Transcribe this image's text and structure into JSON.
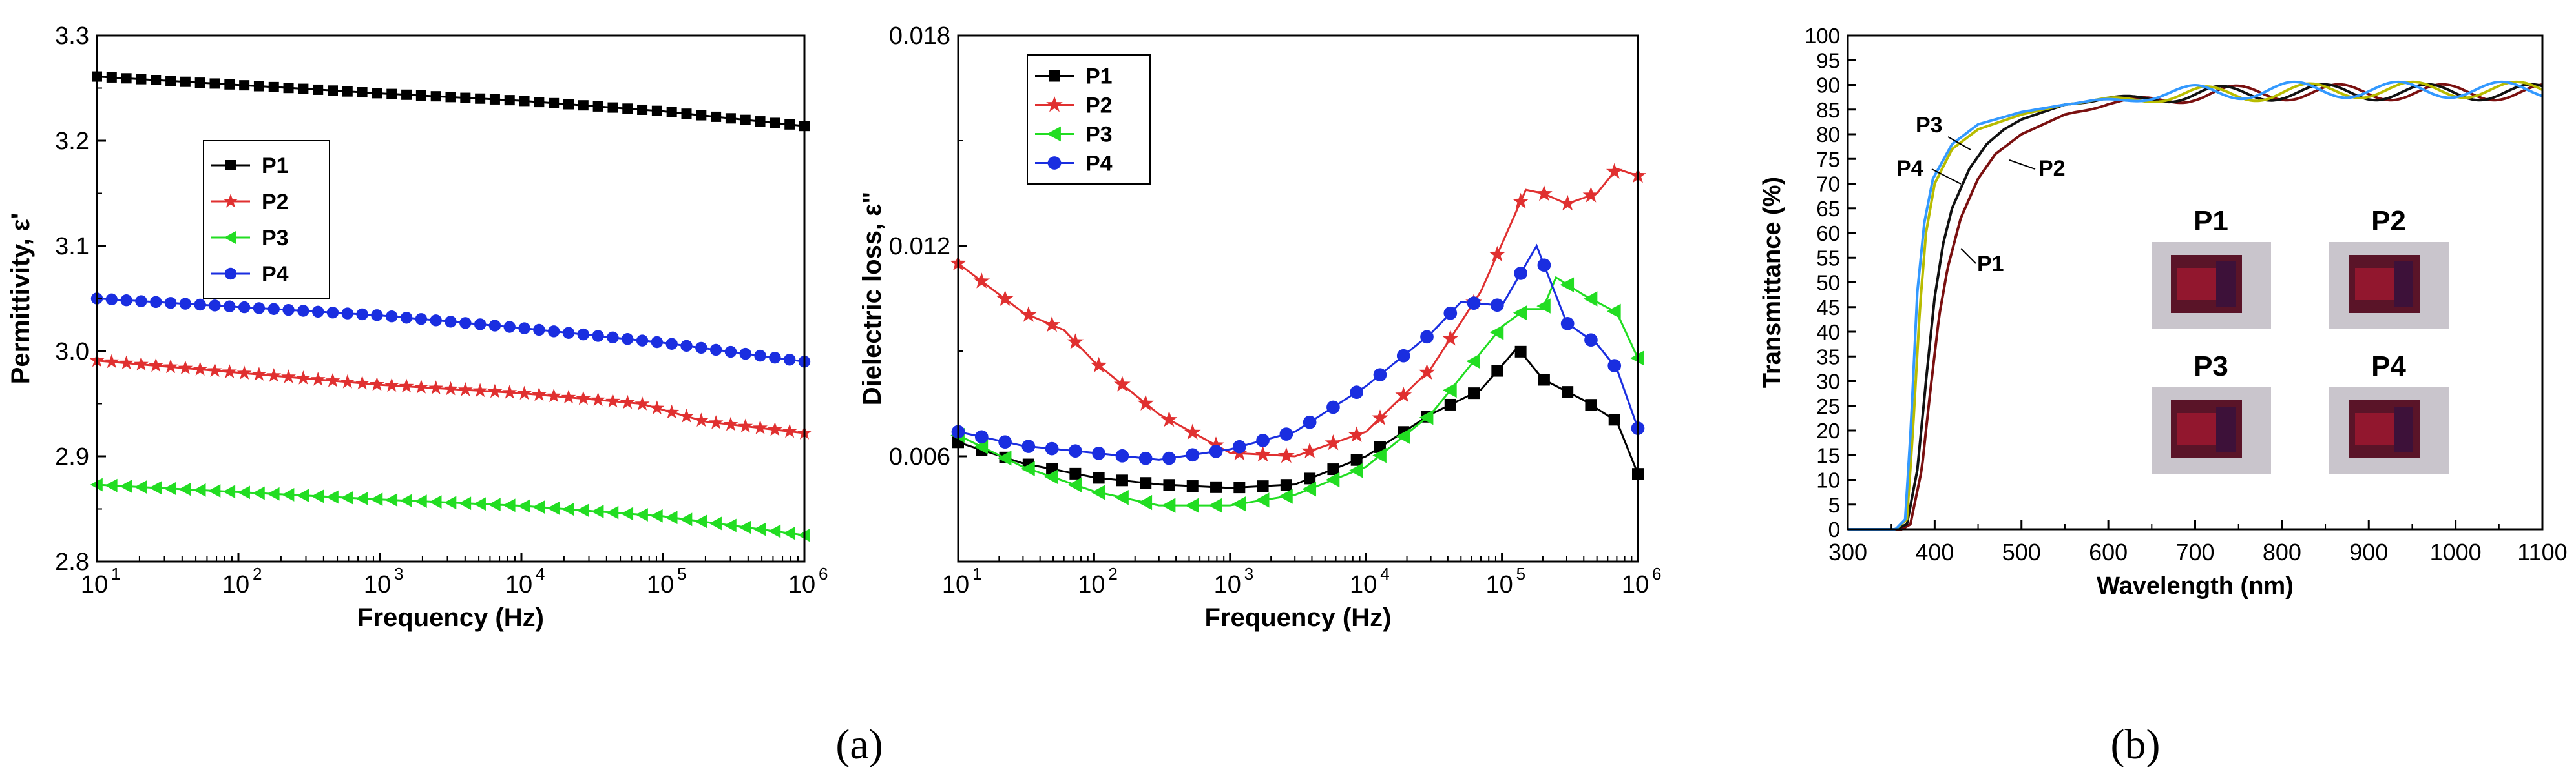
{
  "captions": {
    "a": "(a)",
    "b": "(b)"
  },
  "colors": {
    "P1": "#000000",
    "P2": "#e03030",
    "P3": "#22dd22",
    "P4": "#1a2ee0",
    "T_P1": "#111111",
    "T_P2": "#7a1010",
    "T_P3": "#b8bc00",
    "T_P4": "#3399ff"
  },
  "chart_data": [
    {
      "id": "permittivity",
      "type": "line",
      "title": "",
      "xlabel": "Frequency (Hz)",
      "ylabel": "Permittivity, ε'",
      "xscale": "log",
      "xlim": [
        10,
        1000000
      ],
      "ylim": [
        2.8,
        3.3
      ],
      "xticks": [
        10,
        100,
        1000,
        10000,
        100000,
        1000000
      ],
      "xtick_labels": [
        [
          "10",
          "1"
        ],
        [
          "10",
          "2"
        ],
        [
          "10",
          "3"
        ],
        [
          "10",
          "4"
        ],
        [
          "10",
          "5"
        ],
        [
          "10",
          "6"
        ]
      ],
      "yticks": [
        2.8,
        2.9,
        3.0,
        3.1,
        3.2,
        3.3
      ],
      "ytick_labels": [
        "2.8",
        "2.9",
        "3.0",
        "3.1",
        "3.2",
        "3.3"
      ],
      "legend_position": "upper-left",
      "series": [
        {
          "name": "P1",
          "marker": "square",
          "points": [
            [
              10,
              3.261
            ],
            [
              1000,
              3.245
            ],
            [
              10000,
              3.238
            ],
            [
              100000,
              3.228
            ],
            [
              1000000,
              3.214
            ]
          ]
        },
        {
          "name": "P2",
          "marker": "star",
          "points": [
            [
              10,
              2.991
            ],
            [
              1000,
              2.968
            ],
            [
              10000,
              2.96
            ],
            [
              70000,
              2.95
            ],
            [
              200000,
              2.933
            ],
            [
              1000000,
              2.922
            ]
          ]
        },
        {
          "name": "P3",
          "marker": "triangle-left",
          "points": [
            [
              10,
              2.873
            ],
            [
              1000,
              2.859
            ],
            [
              10000,
              2.853
            ],
            [
              100000,
              2.843
            ],
            [
              1000000,
              2.825
            ]
          ]
        },
        {
          "name": "P4",
          "marker": "circle",
          "points": [
            [
              10,
              3.05
            ],
            [
              1000,
              3.034
            ],
            [
              10000,
              3.022
            ],
            [
              100000,
              3.008
            ],
            [
              1000000,
              2.99
            ]
          ]
        }
      ]
    },
    {
      "id": "dielectric-loss",
      "type": "line",
      "title": "",
      "xlabel": "Frequency (Hz)",
      "ylabel": "Dielectric loss, ε\"",
      "xscale": "log",
      "xlim": [
        10,
        1000000
      ],
      "ylim": [
        0.003,
        0.018
      ],
      "xticks": [
        10,
        100,
        1000,
        10000,
        100000,
        1000000
      ],
      "xtick_labels": [
        [
          "10",
          "1"
        ],
        [
          "10",
          "2"
        ],
        [
          "10",
          "3"
        ],
        [
          "10",
          "4"
        ],
        [
          "10",
          "5"
        ],
        [
          "10",
          "6"
        ]
      ],
      "yticks": [
        0.006,
        0.012,
        0.018
      ],
      "ytick_labels": [
        "0.006",
        "0.012",
        "0.018"
      ],
      "legend_position": "top-left",
      "series": [
        {
          "name": "P1",
          "marker": "square",
          "points": [
            [
              10,
              0.0064
            ],
            [
              30,
              0.0058
            ],
            [
              100,
              0.0054
            ],
            [
              300,
              0.0052
            ],
            [
              1000,
              0.0051
            ],
            [
              3000,
              0.0052
            ],
            [
              10000,
              0.006
            ],
            [
              30000,
              0.0072
            ],
            [
              70000,
              0.0079
            ],
            [
              130000,
              0.0091
            ],
            [
              200000,
              0.0082
            ],
            [
              400000,
              0.0076
            ],
            [
              700000,
              0.007
            ],
            [
              1000000,
              0.0055
            ]
          ]
        },
        {
          "name": "P2",
          "marker": "star",
          "points": [
            [
              10,
              0.0115
            ],
            [
              30,
              0.0101
            ],
            [
              60,
              0.0096
            ],
            [
              100,
              0.0087
            ],
            [
              300,
              0.0072
            ],
            [
              1000,
              0.0061
            ],
            [
              3000,
              0.006
            ],
            [
              10000,
              0.0067
            ],
            [
              30000,
              0.0085
            ],
            [
              70000,
              0.0107
            ],
            [
              150000,
              0.0136
            ],
            [
              200000,
              0.0135
            ],
            [
              300000,
              0.0132
            ],
            [
              500000,
              0.0135
            ],
            [
              700000,
              0.0142
            ],
            [
              1000000,
              0.014
            ]
          ]
        },
        {
          "name": "P3",
          "marker": "triangle-left",
          "points": [
            [
              10,
              0.0066
            ],
            [
              30,
              0.0057
            ],
            [
              100,
              0.005
            ],
            [
              300,
              0.0046
            ],
            [
              1000,
              0.0046
            ],
            [
              3000,
              0.0049
            ],
            [
              10000,
              0.0057
            ],
            [
              30000,
              0.0072
            ],
            [
              100000,
              0.0097
            ],
            [
              150000,
              0.0102
            ],
            [
              200000,
              0.0102
            ],
            [
              250000,
              0.0111
            ],
            [
              400000,
              0.0106
            ],
            [
              700000,
              0.0101
            ],
            [
              1000000,
              0.0088
            ]
          ]
        },
        {
          "name": "P4",
          "marker": "circle",
          "points": [
            [
              10,
              0.0067
            ],
            [
              30,
              0.0063
            ],
            [
              100,
              0.0061
            ],
            [
              300,
              0.0059
            ],
            [
              1000,
              0.0062
            ],
            [
              3000,
              0.0067
            ],
            [
              10000,
              0.008
            ],
            [
              30000,
              0.0095
            ],
            [
              50000,
              0.0104
            ],
            [
              100000,
              0.0103
            ],
            [
              180000,
              0.012
            ],
            [
              300000,
              0.0098
            ],
            [
              500000,
              0.0092
            ],
            [
              700000,
              0.0085
            ],
            [
              1000000,
              0.0068
            ]
          ]
        }
      ]
    },
    {
      "id": "transmittance",
      "type": "line",
      "title": "",
      "xlabel": "Wavelength (nm)",
      "ylabel": "Transmittance (%)",
      "xlim": [
        300,
        1100
      ],
      "ylim": [
        0,
        100
      ],
      "xticks": [
        300,
        400,
        500,
        600,
        700,
        800,
        900,
        1000,
        1100
      ],
      "xtick_labels": [
        "300",
        "400",
        "500",
        "600",
        "700",
        "800",
        "900",
        "1000",
        "1100"
      ],
      "yticks": [
        0,
        5,
        10,
        15,
        20,
        25,
        30,
        35,
        40,
        45,
        50,
        55,
        60,
        65,
        70,
        75,
        80,
        85,
        90,
        95,
        100
      ],
      "ytick_labels": [
        "0",
        "5",
        "10",
        "15",
        "20",
        "25",
        "30",
        "35",
        "40",
        "45",
        "50",
        "55",
        "60",
        "65",
        "70",
        "75",
        "80",
        "85",
        "90",
        "95",
        "100"
      ],
      "annotations": [
        "P1",
        "P2",
        "P3",
        "P4"
      ],
      "inset_labels": [
        "P1",
        "P2",
        "P3",
        "P4"
      ],
      "series": [
        {
          "name": "P1",
          "points": [
            [
              300,
              0
            ],
            [
              355,
              0
            ],
            [
              368,
              1
            ],
            [
              380,
              12
            ],
            [
              390,
              30
            ],
            [
              400,
              47
            ],
            [
              410,
              58
            ],
            [
              420,
              65
            ],
            [
              440,
              73
            ],
            [
              460,
              78
            ],
            [
              480,
              81
            ],
            [
              500,
              83
            ],
            [
              550,
              86
            ],
            [
              600,
              87
            ],
            [
              700,
              88
            ],
            [
              800,
              88.5
            ],
            [
              900,
              88.5
            ],
            [
              1000,
              88.5
            ],
            [
              1100,
              88.5
            ]
          ]
        },
        {
          "name": "P2",
          "points": [
            [
              300,
              0
            ],
            [
              362,
              0
            ],
            [
              372,
              1
            ],
            [
              385,
              12
            ],
            [
              395,
              28
            ],
            [
              405,
              43
            ],
            [
              415,
              53
            ],
            [
              430,
              63
            ],
            [
              450,
              71
            ],
            [
              470,
              76
            ],
            [
              500,
              80
            ],
            [
              550,
              84
            ],
            [
              600,
              86
            ],
            [
              700,
              88
            ],
            [
              800,
              88.5
            ],
            [
              900,
              88.5
            ],
            [
              1000,
              88.5
            ],
            [
              1100,
              88.5
            ]
          ]
        },
        {
          "name": "P3",
          "points": [
            [
              300,
              0
            ],
            [
              355,
              0
            ],
            [
              368,
              2
            ],
            [
              375,
              20
            ],
            [
              383,
              45
            ],
            [
              390,
              60
            ],
            [
              400,
              70
            ],
            [
              420,
              77
            ],
            [
              450,
              81
            ],
            [
              500,
              84
            ],
            [
              550,
              86
            ],
            [
              600,
              87
            ],
            [
              700,
              88
            ],
            [
              800,
              88.5
            ],
            [
              900,
              89
            ],
            [
              1000,
              89
            ],
            [
              1100,
              89
            ]
          ]
        },
        {
          "name": "P4",
          "points": [
            [
              300,
              0
            ],
            [
              355,
              0
            ],
            [
              366,
              2
            ],
            [
              373,
              22
            ],
            [
              380,
              48
            ],
            [
              388,
              62
            ],
            [
              398,
              71
            ],
            [
              420,
              78
            ],
            [
              450,
              82
            ],
            [
              500,
              84.5
            ],
            [
              550,
              86
            ],
            [
              600,
              87
            ],
            [
              700,
              88.5
            ],
            [
              800,
              89
            ],
            [
              900,
              89
            ],
            [
              1000,
              89
            ],
            [
              1100,
              89
            ]
          ]
        }
      ]
    }
  ]
}
